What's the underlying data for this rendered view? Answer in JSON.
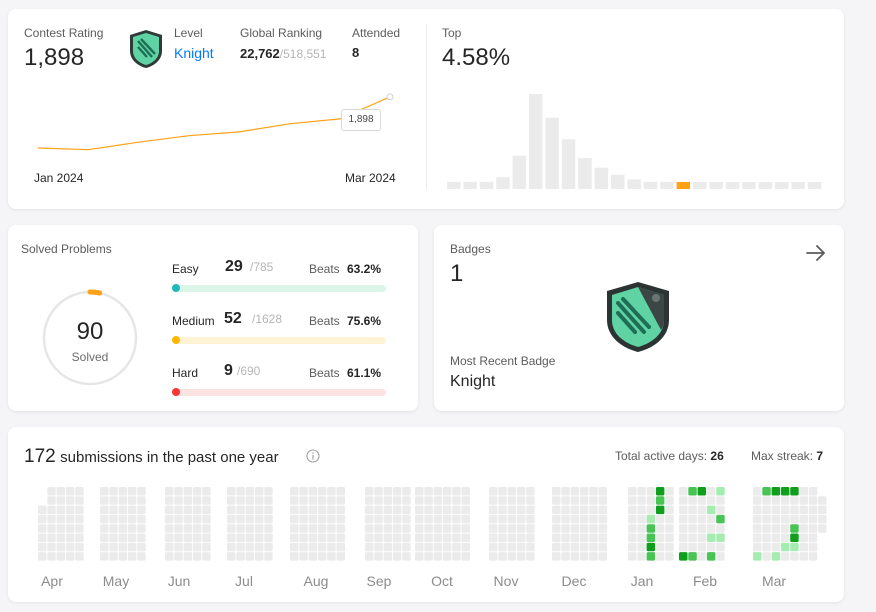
{
  "contest": {
    "rating_label": "Contest Rating",
    "rating": "1,898",
    "level_label": "Level",
    "level": "Knight",
    "global_label": "Global Ranking",
    "global_rank": "22,762",
    "global_total": "/518,551",
    "attended_label": "Attended",
    "attended": "8",
    "chart_start": "Jan 2024",
    "chart_end": "Mar 2024",
    "tooltip": "1,898",
    "top_label": "Top",
    "top_value": "4.58%"
  },
  "chart_data": [
    {
      "type": "line",
      "x": [
        "Jan 2024",
        "",
        "",
        "",
        "",
        "",
        "",
        "Mar 2024"
      ],
      "series": [
        {
          "values": [
            1740,
            1735,
            1758,
            1778,
            1790,
            1815,
            1830,
            1898
          ]
        }
      ],
      "ylim": [
        1700,
        1910
      ]
    },
    {
      "type": "bar",
      "values": [
        3,
        3,
        3,
        5,
        14,
        40,
        30,
        21,
        13,
        9,
        6,
        4,
        3,
        3,
        2,
        2,
        2,
        2,
        2,
        2,
        2,
        2,
        2
      ],
      "highlight_index": 14,
      "colors": {
        "bar": "#ebebeb",
        "highlight": "#ffa116"
      }
    }
  ],
  "solved": {
    "title": "Solved Problems",
    "count": "90",
    "count_label": "Solved",
    "rows": [
      {
        "name": "Easy",
        "solved": "29",
        "total": "/785",
        "beats_label": "Beats",
        "beats": "63.2%",
        "fraction": 0.037
      },
      {
        "name": "Medium",
        "solved": "52",
        "total": "/1628",
        "beats_label": "Beats",
        "beats": "75.6%",
        "fraction": 0.032
      },
      {
        "name": "Hard",
        "solved": "9",
        "total": "/690",
        "beats_label": "Beats",
        "beats": "61.1%",
        "fraction": 0.013
      }
    ]
  },
  "badges": {
    "title": "Badges",
    "count": "1",
    "recent_label": "Most Recent Badge",
    "recent": "Knight"
  },
  "submissions": {
    "count": "172",
    "label": "submissions in the past one year",
    "active_label": "Total active days:",
    "active": "26",
    "streak_label": "Max streak:",
    "streak": "7",
    "months": [
      "Apr",
      "May",
      "Jun",
      "Jul",
      "Aug",
      "Sep",
      "Oct",
      "Nov",
      "Dec",
      "Jan",
      "Feb",
      "Mar"
    ]
  },
  "colors": {
    "accent_blue": "#007aff",
    "easy": "#1cbaba",
    "medium": "#ffb700",
    "hard": "#f63636",
    "orange": "#ffa116",
    "heat_empty": "#ebebeb",
    "heat_1": "#a6ecb0",
    "heat_2": "#48c455",
    "heat_3": "#109f1d"
  }
}
